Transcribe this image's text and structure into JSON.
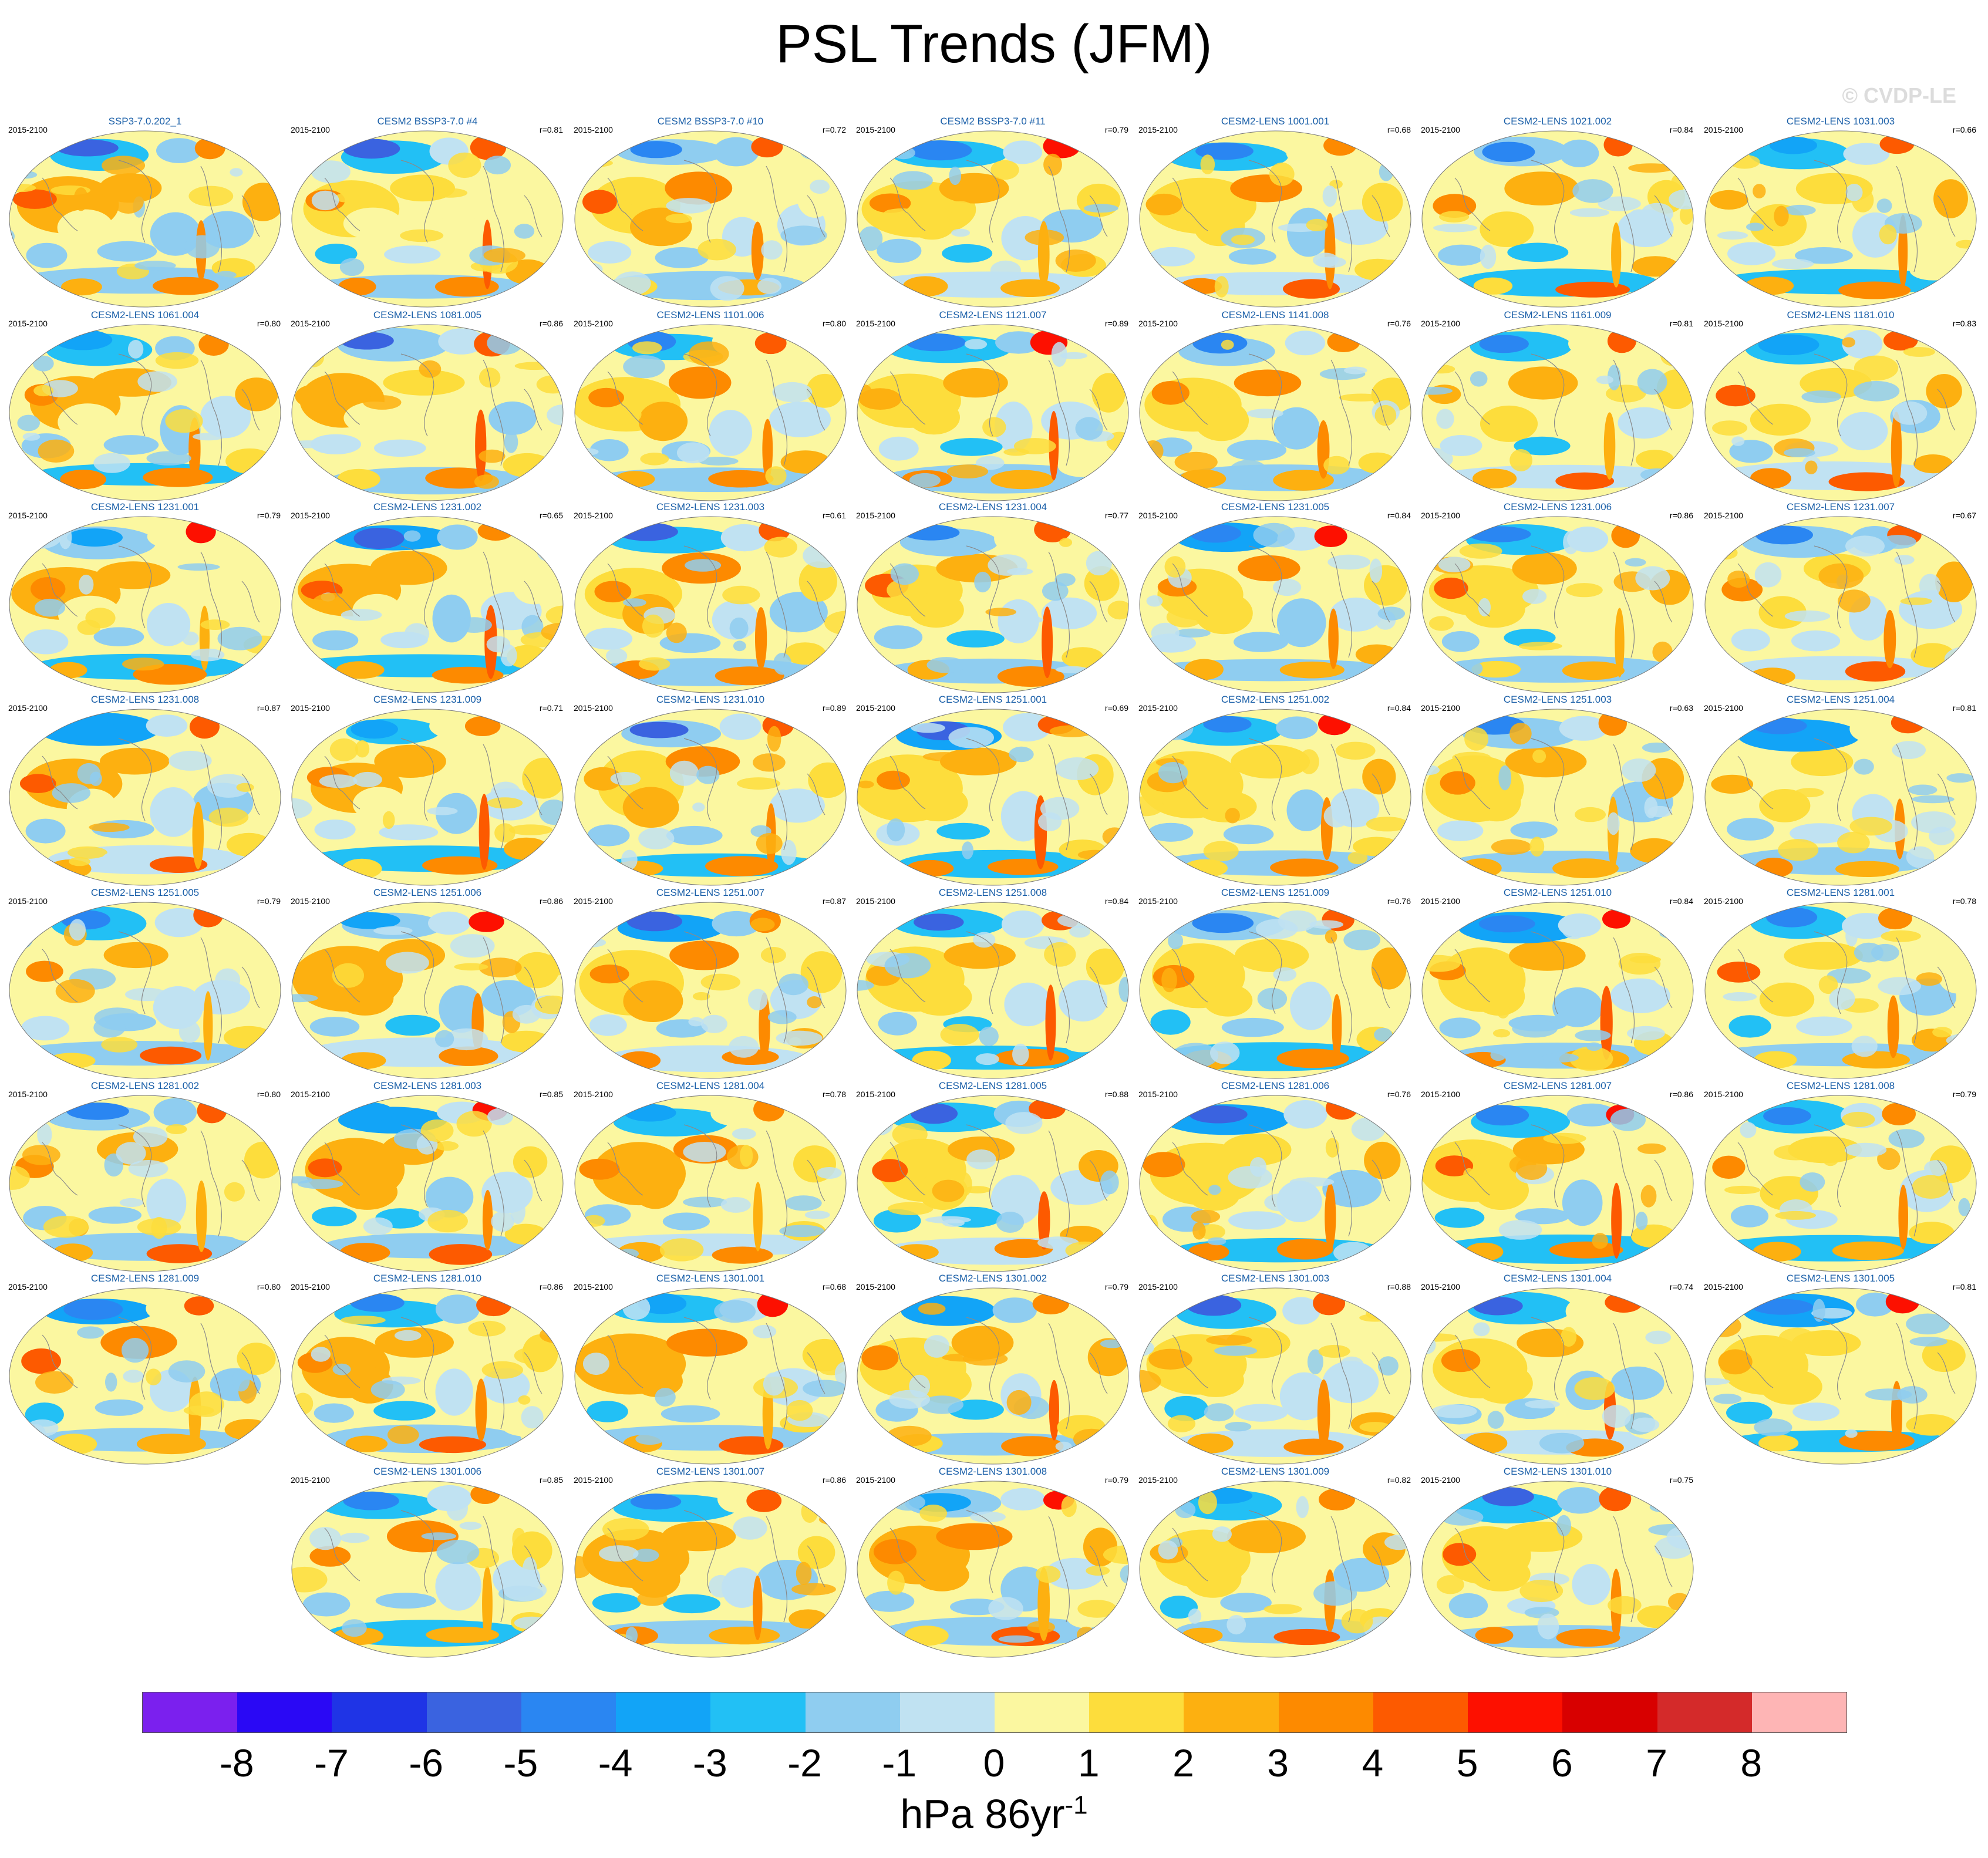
{
  "title": "PSL Trends (JFM)",
  "watermark": "© CVDP-LE",
  "period": "2015-2100",
  "chart_data": {
    "type": "heatmap",
    "title": "PSL Trends (JFM)",
    "period": "2015-2100",
    "projection": "robinson-global-map",
    "panels": [
      {
        "title": "SSP3-7.0.202_1",
        "r": ""
      },
      {
        "title": "CESM2 BSSP3-7.0 #4",
        "r": "r=0.81"
      },
      {
        "title": "CESM2 BSSP3-7.0 #10",
        "r": "r=0.72"
      },
      {
        "title": "CESM2 BSSP3-7.0 #11",
        "r": "r=0.79"
      },
      {
        "title": "CESM2-LENS 1001.001",
        "r": "r=0.68"
      },
      {
        "title": "CESM2-LENS 1021.002",
        "r": "r=0.84"
      },
      {
        "title": "CESM2-LENS 1031.003",
        "r": "r=0.66"
      },
      {
        "title": "CESM2-LENS 1061.004",
        "r": "r=0.80"
      },
      {
        "title": "CESM2-LENS 1081.005",
        "r": "r=0.86"
      },
      {
        "title": "CESM2-LENS 1101.006",
        "r": "r=0.80"
      },
      {
        "title": "CESM2-LENS 1121.007",
        "r": "r=0.89"
      },
      {
        "title": "CESM2-LENS 1141.008",
        "r": "r=0.76"
      },
      {
        "title": "CESM2-LENS 1161.009",
        "r": "r=0.81"
      },
      {
        "title": "CESM2-LENS 1181.010",
        "r": "r=0.83"
      },
      {
        "title": "CESM2-LENS 1231.001",
        "r": "r=0.79"
      },
      {
        "title": "CESM2-LENS 1231.002",
        "r": "r=0.65"
      },
      {
        "title": "CESM2-LENS 1231.003",
        "r": "r=0.61"
      },
      {
        "title": "CESM2-LENS 1231.004",
        "r": "r=0.77"
      },
      {
        "title": "CESM2-LENS 1231.005",
        "r": "r=0.84"
      },
      {
        "title": "CESM2-LENS 1231.006",
        "r": "r=0.86"
      },
      {
        "title": "CESM2-LENS 1231.007",
        "r": "r=0.67"
      },
      {
        "title": "CESM2-LENS 1231.008",
        "r": "r=0.87"
      },
      {
        "title": "CESM2-LENS 1231.009",
        "r": "r=0.71"
      },
      {
        "title": "CESM2-LENS 1231.010",
        "r": "r=0.89"
      },
      {
        "title": "CESM2-LENS 1251.001",
        "r": "r=0.69"
      },
      {
        "title": "CESM2-LENS 1251.002",
        "r": "r=0.84"
      },
      {
        "title": "CESM2-LENS 1251.003",
        "r": "r=0.63"
      },
      {
        "title": "CESM2-LENS 1251.004",
        "r": "r=0.81"
      },
      {
        "title": "CESM2-LENS 1251.005",
        "r": "r=0.79"
      },
      {
        "title": "CESM2-LENS 1251.006",
        "r": "r=0.86"
      },
      {
        "title": "CESM2-LENS 1251.007",
        "r": "r=0.87"
      },
      {
        "title": "CESM2-LENS 1251.008",
        "r": "r=0.84"
      },
      {
        "title": "CESM2-LENS 1251.009",
        "r": "r=0.76"
      },
      {
        "title": "CESM2-LENS 1251.010",
        "r": "r=0.84"
      },
      {
        "title": "CESM2-LENS 1281.001",
        "r": "r=0.78"
      },
      {
        "title": "CESM2-LENS 1281.002",
        "r": "r=0.80"
      },
      {
        "title": "CESM2-LENS 1281.003",
        "r": "r=0.85"
      },
      {
        "title": "CESM2-LENS 1281.004",
        "r": "r=0.78"
      },
      {
        "title": "CESM2-LENS 1281.005",
        "r": "r=0.88"
      },
      {
        "title": "CESM2-LENS 1281.006",
        "r": "r=0.76"
      },
      {
        "title": "CESM2-LENS 1281.007",
        "r": "r=0.86"
      },
      {
        "title": "CESM2-LENS 1281.008",
        "r": "r=0.79"
      },
      {
        "title": "CESM2-LENS 1281.009",
        "r": "r=0.80"
      },
      {
        "title": "CESM2-LENS 1281.010",
        "r": "r=0.86"
      },
      {
        "title": "CESM2-LENS 1301.001",
        "r": "r=0.68"
      },
      {
        "title": "CESM2-LENS 1301.002",
        "r": "r=0.79"
      },
      {
        "title": "CESM2-LENS 1301.003",
        "r": "r=0.88"
      },
      {
        "title": "CESM2-LENS 1301.004",
        "r": "r=0.74"
      },
      {
        "title": "CESM2-LENS 1301.005",
        "r": "r=0.81"
      },
      {
        "title": "CESM2-LENS 1301.006",
        "r": "r=0.85"
      },
      {
        "title": "CESM2-LENS 1301.007",
        "r": "r=0.86"
      },
      {
        "title": "CESM2-LENS 1301.008",
        "r": "r=0.79"
      },
      {
        "title": "CESM2-LENS 1301.009",
        "r": "r=0.82"
      },
      {
        "title": "CESM2-LENS 1301.010",
        "r": "r=0.75"
      }
    ],
    "colorbar": {
      "levels": [
        -8,
        -7,
        -6,
        -5,
        -4,
        -3,
        -2,
        -1,
        0,
        1,
        2,
        3,
        4,
        5,
        6,
        7,
        8
      ],
      "tick_labels": [
        "-8",
        "-7",
        "-6",
        "-5",
        "-4",
        "-3",
        "-2",
        "-1",
        "0",
        "1",
        "2",
        "3",
        "4",
        "5",
        "6",
        "7",
        "8"
      ],
      "colors": [
        "#7b20ee",
        "#2a08f5",
        "#1f34e6",
        "#3a63e0",
        "#2a86f2",
        "#12a4f7",
        "#22c0f5",
        "#8fcdf0",
        "#c0e2f2",
        "#fbf7a0",
        "#fddd3c",
        "#fdb010",
        "#fd8a00",
        "#fd5a00",
        "#fd1000",
        "#d80000",
        "#d42a2a",
        "#feb5b5"
      ],
      "units": "hPa 86yr",
      "units_superscript": "-1"
    }
  }
}
